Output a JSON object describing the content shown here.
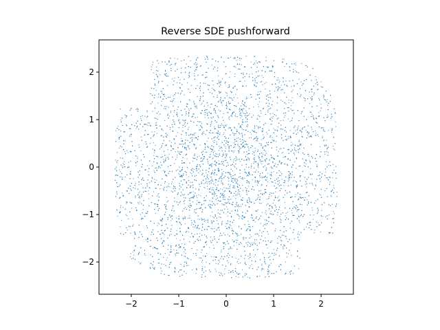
{
  "chart_data": {
    "type": "scatter",
    "title": "Reverse SDE pushforward",
    "xlabel": "",
    "ylabel": "",
    "xlim": [
      -2.68,
      2.68
    ],
    "ylim": [
      -2.68,
      2.68
    ],
    "xticks": [
      -2,
      -1,
      0,
      1,
      2
    ],
    "yticks": [
      -2,
      -1,
      0,
      1,
      2
    ],
    "xtick_labels": [
      "−2",
      "−1",
      "0",
      "1",
      "2"
    ],
    "ytick_labels": [
      "−2",
      "−1",
      "0",
      "1",
      "2"
    ],
    "grid": false,
    "legend": "none",
    "point_color": "#1f77b4",
    "point_count": 6000,
    "distribution": "approximately uniform point cloud filling a rounded square of half-width about 2.3 centered at (0,0), with a notch cut out near the upper-left (around x=-1.8, y=1.8) and a notch near the lower-right (around x=1.8, y=-1.8)"
  }
}
